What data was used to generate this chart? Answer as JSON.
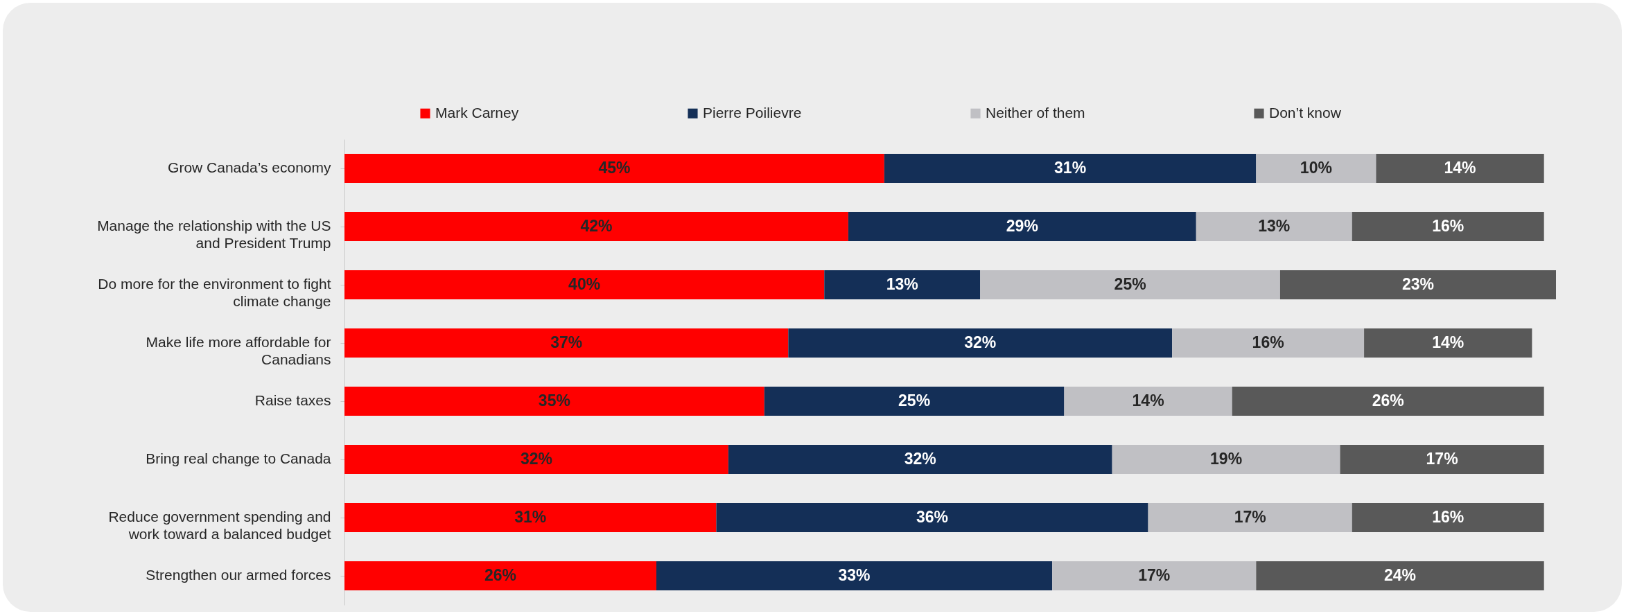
{
  "chart_data": {
    "type": "bar",
    "orientation": "horizontal",
    "stacked": true,
    "categories": [
      "Grow Canada’s economy",
      "Manage the relationship with the US\nand President Trump",
      "Do more for the environment to fight\nclimate change",
      "Make life more affordable for\nCanadians",
      "Raise taxes",
      "Bring real change to Canada",
      "Reduce government spending and\nwork toward a balanced budget",
      "Strengthen our armed forces"
    ],
    "series": [
      {
        "name": "Mark Carney",
        "color": "#ff0000",
        "values": [
          45,
          42,
          40,
          37,
          35,
          32,
          31,
          26
        ],
        "value_labels": [
          "45%",
          "42%",
          "40%",
          "37%",
          "35%",
          "32%",
          "31%",
          "26%"
        ]
      },
      {
        "name": "Pierre Poilievre",
        "color": "#142f57",
        "values": [
          31,
          29,
          13,
          32,
          25,
          32,
          36,
          33
        ],
        "value_labels": [
          "31%",
          "29%",
          "13%",
          "32%",
          "25%",
          "32%",
          "36%",
          "33%"
        ]
      },
      {
        "name": "Neither of them",
        "color": "#c0c0c4",
        "values": [
          10,
          13,
          25,
          16,
          14,
          19,
          17,
          17
        ],
        "value_labels": [
          "10%",
          "13%",
          "25%",
          "16%",
          "14%",
          "19%",
          "17%",
          "17%"
        ]
      },
      {
        "name": "Don’t know",
        "color": "#595959",
        "values": [
          14,
          16,
          23,
          14,
          26,
          17,
          16,
          24
        ],
        "value_labels": [
          "14%",
          "16%",
          "23%",
          "14%",
          "26%",
          "17%",
          "16%",
          "24%"
        ]
      }
    ],
    "xlim": [
      0,
      101
    ],
    "tick_labels": "y",
    "legend": "top"
  }
}
